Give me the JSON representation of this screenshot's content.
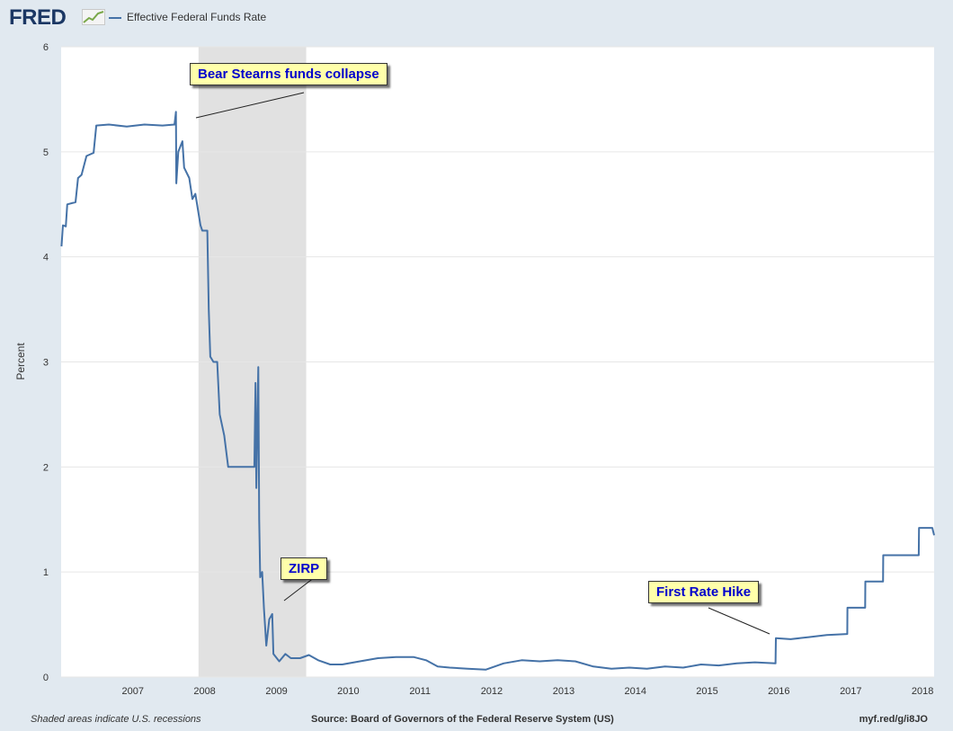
{
  "header": {
    "logo": "FRED",
    "legend_label": "Effective Federal Funds Rate"
  },
  "footer": {
    "recession_note": "Shaded areas indicate U.S. recessions",
    "source": "Source: Board of Governors of the Federal Reserve System (US)",
    "url": "myf.red/g/i8JO"
  },
  "annotations": {
    "bear": "Bear Stearns funds collapse",
    "zirp": "ZIRP",
    "hike": "First Rate Hike"
  },
  "colors": {
    "series": "#4572a7",
    "recession": "#e1e1e1",
    "plot_background": "#ffffff",
    "page_background": "#e1e9f0"
  },
  "chart_data": {
    "type": "line",
    "title": "",
    "xlabel": "",
    "ylabel": "Percent",
    "ylim": [
      0,
      6
    ],
    "xlim": [
      "2006-01-01",
      "2018-03-01"
    ],
    "y_ticks": [
      0,
      1,
      2,
      3,
      4,
      5,
      6
    ],
    "x_ticks": [
      "2007",
      "2008",
      "2009",
      "2010",
      "2011",
      "2012",
      "2013",
      "2014",
      "2015",
      "2016",
      "2017",
      "2018"
    ],
    "grid": true,
    "legend_position": "top-left",
    "recessions": [
      {
        "start": "2007-12-01",
        "end": "2009-06-01"
      }
    ],
    "series": [
      {
        "name": "Effective Federal Funds Rate",
        "points": [
          [
            "2006-01-03",
            4.1
          ],
          [
            "2006-01-10",
            4.3
          ],
          [
            "2006-01-25",
            4.29
          ],
          [
            "2006-02-01",
            4.5
          ],
          [
            "2006-03-15",
            4.52
          ],
          [
            "2006-03-28",
            4.75
          ],
          [
            "2006-04-15",
            4.78
          ],
          [
            "2006-05-10",
            4.96
          ],
          [
            "2006-06-15",
            4.99
          ],
          [
            "2006-06-29",
            5.25
          ],
          [
            "2006-09-01",
            5.26
          ],
          [
            "2006-12-01",
            5.24
          ],
          [
            "2007-03-01",
            5.26
          ],
          [
            "2007-06-01",
            5.25
          ],
          [
            "2007-08-01",
            5.26
          ],
          [
            "2007-08-08",
            5.38
          ],
          [
            "2007-08-10",
            4.7
          ],
          [
            "2007-08-20",
            5.0
          ],
          [
            "2007-09-10",
            5.1
          ],
          [
            "2007-09-19",
            4.85
          ],
          [
            "2007-10-15",
            4.75
          ],
          [
            "2007-10-31",
            4.55
          ],
          [
            "2007-11-15",
            4.6
          ],
          [
            "2007-12-11",
            4.3
          ],
          [
            "2007-12-20",
            4.25
          ],
          [
            "2008-01-15",
            4.25
          ],
          [
            "2008-01-22",
            3.5
          ],
          [
            "2008-01-30",
            3.05
          ],
          [
            "2008-02-15",
            3.0
          ],
          [
            "2008-03-05",
            3.0
          ],
          [
            "2008-03-18",
            2.5
          ],
          [
            "2008-04-10",
            2.3
          ],
          [
            "2008-04-30",
            2.0
          ],
          [
            "2008-06-15",
            2.0
          ],
          [
            "2008-08-15",
            2.0
          ],
          [
            "2008-09-10",
            2.0
          ],
          [
            "2008-09-16",
            2.8
          ],
          [
            "2008-09-20",
            1.8
          ],
          [
            "2008-09-30",
            2.95
          ],
          [
            "2008-10-05",
            1.5
          ],
          [
            "2008-10-10",
            0.95
          ],
          [
            "2008-10-20",
            1.0
          ],
          [
            "2008-10-29",
            0.65
          ],
          [
            "2008-11-10",
            0.3
          ],
          [
            "2008-11-25",
            0.55
          ],
          [
            "2008-12-10",
            0.6
          ],
          [
            "2008-12-16",
            0.22
          ],
          [
            "2009-01-15",
            0.15
          ],
          [
            "2009-02-15",
            0.22
          ],
          [
            "2009-03-15",
            0.18
          ],
          [
            "2009-05-01",
            0.18
          ],
          [
            "2009-06-15",
            0.21
          ],
          [
            "2009-08-01",
            0.16
          ],
          [
            "2009-10-01",
            0.12
          ],
          [
            "2009-12-01",
            0.12
          ],
          [
            "2010-03-01",
            0.15
          ],
          [
            "2010-06-01",
            0.18
          ],
          [
            "2010-09-01",
            0.19
          ],
          [
            "2010-12-01",
            0.19
          ],
          [
            "2011-02-01",
            0.16
          ],
          [
            "2011-04-01",
            0.1
          ],
          [
            "2011-06-01",
            0.09
          ],
          [
            "2011-09-01",
            0.08
          ],
          [
            "2011-12-01",
            0.07
          ],
          [
            "2012-03-01",
            0.13
          ],
          [
            "2012-06-01",
            0.16
          ],
          [
            "2012-09-01",
            0.15
          ],
          [
            "2012-12-01",
            0.16
          ],
          [
            "2013-03-01",
            0.15
          ],
          [
            "2013-06-01",
            0.1
          ],
          [
            "2013-09-01",
            0.08
          ],
          [
            "2013-12-01",
            0.09
          ],
          [
            "2014-03-01",
            0.08
          ],
          [
            "2014-06-01",
            0.1
          ],
          [
            "2014-09-01",
            0.09
          ],
          [
            "2014-12-01",
            0.12
          ],
          [
            "2015-03-01",
            0.11
          ],
          [
            "2015-06-01",
            0.13
          ],
          [
            "2015-09-01",
            0.14
          ],
          [
            "2015-12-15",
            0.13
          ],
          [
            "2015-12-17",
            0.37
          ],
          [
            "2016-03-01",
            0.36
          ],
          [
            "2016-06-01",
            0.38
          ],
          [
            "2016-09-01",
            0.4
          ],
          [
            "2016-12-14",
            0.41
          ],
          [
            "2016-12-15",
            0.66
          ],
          [
            "2017-03-15",
            0.66
          ],
          [
            "2017-03-16",
            0.91
          ],
          [
            "2017-06-14",
            0.91
          ],
          [
            "2017-06-15",
            1.16
          ],
          [
            "2017-12-13",
            1.16
          ],
          [
            "2017-12-14",
            1.42
          ],
          [
            "2018-02-20",
            1.42
          ],
          [
            "2018-03-01",
            1.35
          ]
        ]
      }
    ]
  }
}
